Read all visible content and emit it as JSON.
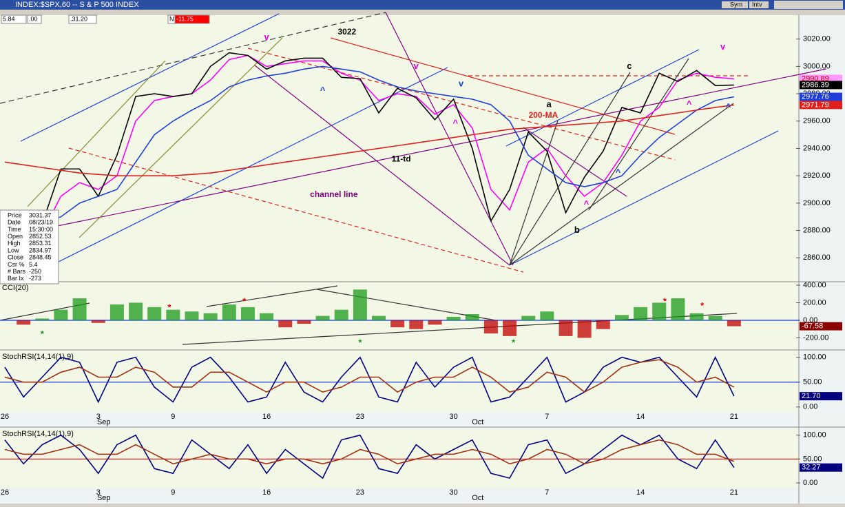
{
  "header": {
    "title": "INDEX:$SPX,60 -- S & P 500 INDEX",
    "fields": [
      "5.84",
      ".00",
      ".31.20",
      "N",
      "-11.75"
    ],
    "buttons": [
      "Sym",
      "Intv"
    ]
  },
  "info": {
    "rows": [
      {
        "label": "Price",
        "value": 3031.37
      },
      {
        "label": "Date",
        "value": "08/23/19"
      },
      {
        "label": "Time",
        "value": "15:30:00"
      },
      {
        "label": "Open",
        "value": 2852.53
      },
      {
        "label": "High",
        "value": 2853.31
      },
      {
        "label": "Low",
        "value": 2834.97
      },
      {
        "label": "Close",
        "value": 2848.45
      },
      {
        "label": "Csr %",
        "value": 5.4
      },
      {
        "label": "# Bars",
        "value": -250
      },
      {
        "label": "Bar Ix",
        "value": -273
      }
    ]
  },
  "chart_data": [
    {
      "type": "line",
      "ylim": [
        2843,
        3041
      ],
      "yticks": [
        {
          "value": 3020,
          "label": "3020.00"
        },
        {
          "value": 3000,
          "label": "3000.00"
        },
        {
          "value": 2980,
          "label": "2980.00"
        },
        {
          "value": 2960,
          "label": "2960.00"
        },
        {
          "value": 2940,
          "label": "2940.00"
        },
        {
          "value": 2920,
          "label": "2920.00"
        },
        {
          "value": 2900,
          "label": "2900.00"
        },
        {
          "value": 2880,
          "label": "2880.00"
        },
        {
          "value": 2860,
          "label": "2860.00"
        }
      ],
      "series": [
        {
          "color": "#ff00ff",
          "box_color": "#ff99ff",
          "box_text": "#cc0000",
          "values": [
            2880,
            2875,
            2878,
            2905,
            2915,
            2910,
            2920,
            2960,
            2975,
            2978,
            2980,
            2990,
            3005,
            3008,
            3000,
            3002,
            3004,
            3004,
            2995,
            2990,
            2975,
            2980,
            2978,
            2965,
            2972,
            2955,
            2910,
            2895,
            2930,
            2940,
            2920,
            2905,
            2915,
            2935,
            2960,
            2970,
            2990,
            2995,
            2992,
            2990.89
          ]
        },
        {
          "color": "#000000",
          "box_color": "#000000",
          "box_text": "#ffffff",
          "values": [
            2878,
            2870,
            2885,
            2925,
            2925,
            2905,
            2935,
            2978,
            2980,
            2978,
            2980,
            3000,
            3010,
            3008,
            2998,
            3004,
            3006,
            3006,
            2992,
            2991,
            2966,
            2984,
            2977,
            2961,
            2976,
            2940,
            2887,
            2910,
            2952,
            2938,
            2893,
            2919,
            2938,
            2970,
            2966,
            2995,
            2989,
            2997,
            2986,
            2986.39
          ]
        },
        {
          "color": "#1f3fd8",
          "box_color": "#1f3fd8",
          "box_text": "#ffffff",
          "values": [
            2890,
            2885,
            2885,
            2890,
            2900,
            2905,
            2910,
            2930,
            2950,
            2960,
            2968,
            2975,
            2985,
            2990,
            2993,
            2995,
            2998,
            3000,
            2998,
            2996,
            2990,
            2985,
            2982,
            2980,
            2978,
            2976,
            2972,
            2960,
            2935,
            2925,
            2915,
            2912,
            2915,
            2920,
            2935,
            2948,
            2958,
            2968,
            2975,
            2977.76
          ]
        },
        {
          "name": "200-MA",
          "color": "#e0201c",
          "box_color": "#e0201c",
          "box_text": "#ffffff",
          "values": [
            2930,
            2928,
            2926,
            2924,
            2922,
            2921,
            2920,
            2920,
            2920,
            2920,
            2921,
            2922,
            2924,
            2926,
            2928,
            2930,
            2932,
            2934,
            2936,
            2938,
            2940,
            2942,
            2944,
            2946,
            2948,
            2950,
            2952,
            2954,
            2955,
            2956,
            2957,
            2958,
            2959,
            2960,
            2962,
            2964,
            2966,
            2968,
            2970,
            2971.79
          ]
        }
      ],
      "annotations": [
        {
          "text": "3022",
          "x": 18.3,
          "y": 3025,
          "color": "#000000"
        },
        {
          "text": "channel line",
          "x": 17.6,
          "y": 2906,
          "color": "#800080"
        },
        {
          "text": "200-MA",
          "x": 28.8,
          "y": 2964,
          "color": "#e0201c"
        },
        {
          "text": "a",
          "x": 29.1,
          "y": 2972,
          "color": "#000000"
        },
        {
          "text": "b",
          "x": 30.6,
          "y": 2880,
          "color": "#000000"
        },
        {
          "text": "c",
          "x": 33.4,
          "y": 3000,
          "color": "#000000"
        },
        {
          "text": "11-td",
          "x": 21.2,
          "y": 2932,
          "color": "#000000"
        },
        {
          "text": "v",
          "x": 14,
          "y": 3021,
          "color": "#e000e0"
        },
        {
          "text": "v",
          "x": 22,
          "y": 3000,
          "color": "#e000e0"
        },
        {
          "text": "^",
          "x": 17,
          "y": 2982,
          "color": "#1f3fd8"
        },
        {
          "text": "v",
          "x": 24.4,
          "y": 2987,
          "color": "#1f3fd8"
        },
        {
          "text": "^",
          "x": 24.1,
          "y": 2958,
          "color": "#e000e0"
        },
        {
          "text": "^",
          "x": 31.1,
          "y": 2899,
          "color": "#e000e0"
        },
        {
          "text": "^",
          "x": 32.8,
          "y": 2922,
          "color": "#1f3fd8"
        },
        {
          "text": "^",
          "x": 36.6,
          "y": 2972,
          "color": "#e000e0"
        },
        {
          "text": "v",
          "x": 38.4,
          "y": 3014,
          "color": "#e000e0"
        },
        {
          "text": "^",
          "x": 38.7,
          "y": 2970,
          "color": "#1f3fd8"
        }
      ]
    },
    {
      "type": "bar",
      "title": "CCI(20)",
      "ylim": [
        -322,
        431
      ],
      "hline": 0,
      "hline_color": "#2040e0",
      "colors": {
        "positive": "#1a9a1a",
        "negative": "#c00000"
      },
      "box_color": "#8b0000",
      "box_text": "#ffffff",
      "yticks": [
        {
          "value": 400,
          "label": "400.00"
        },
        {
          "value": 200,
          "label": "200.00"
        },
        {
          "value": 0,
          "label": "0.00"
        },
        {
          "value": -200,
          "label": "-200.00"
        }
      ],
      "values": [
        0,
        -50,
        20,
        120,
        250,
        -30,
        180,
        200,
        150,
        120,
        100,
        80,
        180,
        150,
        80,
        -80,
        -40,
        50,
        120,
        350,
        50,
        -80,
        -100,
        -50,
        40,
        70,
        -150,
        -180,
        50,
        100,
        -180,
        -200,
        -100,
        60,
        150,
        200,
        250,
        80,
        50,
        -67.58
      ],
      "annotations": [
        {
          "text": "*",
          "x": 2,
          "y": -160,
          "color": "#1a9a1a"
        },
        {
          "text": "*",
          "x": 8.8,
          "y": 140,
          "color": "#e00000"
        },
        {
          "text": "*",
          "x": 12.8,
          "y": 210,
          "color": "#e00000"
        },
        {
          "text": "*",
          "x": 19,
          "y": -260,
          "color": "#1a9a1a"
        },
        {
          "text": "*",
          "x": 27.2,
          "y": -260,
          "color": "#1a9a1a"
        },
        {
          "text": "*",
          "x": 35.3,
          "y": 210,
          "color": "#e00000"
        },
        {
          "text": "*",
          "x": 37.3,
          "y": 160,
          "color": "#e00000"
        }
      ]
    },
    {
      "type": "line",
      "title": "StochRSI(14,14(1),9)",
      "ylim": [
        -10,
        112
      ],
      "hline": 50,
      "hline_color": "#2040e0",
      "yticks": [
        {
          "value": 100,
          "label": "100.00"
        },
        {
          "value": 50,
          "label": "50.00"
        },
        {
          "value": 0,
          "label": "0.00"
        }
      ],
      "categories": [
        "26",
        null,
        null,
        null,
        null,
        "3",
        null,
        null,
        null,
        "9",
        null,
        null,
        null,
        null,
        "16",
        null,
        null,
        null,
        null,
        "23",
        null,
        null,
        null,
        null,
        "30",
        null,
        null,
        null,
        null,
        "7",
        null,
        null,
        null,
        null,
        "14",
        null,
        null,
        null,
        null,
        "21"
      ],
      "month_labels": [
        null,
        null,
        null,
        null,
        null,
        "Sep",
        null,
        null,
        null,
        null,
        null,
        null,
        null,
        null,
        null,
        null,
        null,
        null,
        null,
        null,
        null,
        null,
        null,
        null,
        null,
        "Oct",
        null,
        null,
        null,
        null,
        null,
        null,
        null,
        null,
        null,
        null,
        null,
        null,
        null,
        null
      ],
      "series": [
        {
          "color": "#000080",
          "box_color": "#000080",
          "box_text": "#ffffff",
          "values": [
            80,
            20,
            60,
            100,
            90,
            10,
            90,
            100,
            40,
            10,
            80,
            100,
            60,
            10,
            20,
            90,
            30,
            10,
            60,
            100,
            20,
            10,
            90,
            40,
            80,
            100,
            10,
            20,
            60,
            100,
            10,
            30,
            80,
            100,
            90,
            100,
            60,
            20,
            100,
            21.7
          ],
          "value_labels": [
            null,
            null,
            null,
            null,
            null,
            null,
            null,
            null,
            null,
            null,
            null,
            null,
            null,
            null,
            null,
            null,
            null,
            null,
            null,
            null,
            null,
            null,
            null,
            null,
            null,
            null,
            null,
            null,
            null,
            null,
            null,
            null,
            null,
            null,
            null,
            null,
            null,
            null,
            null,
            "21.70"
          ]
        },
        {
          "color": "#a03010",
          "values": [
            60,
            50,
            50,
            70,
            80,
            60,
            60,
            80,
            70,
            40,
            40,
            70,
            70,
            50,
            30,
            50,
            50,
            30,
            40,
            60,
            60,
            30,
            50,
            60,
            60,
            80,
            60,
            30,
            40,
            70,
            60,
            30,
            50,
            80,
            90,
            95,
            80,
            50,
            60,
            40
          ]
        }
      ]
    },
    {
      "type": "line",
      "title": "StochRSI(14,14(1),9)",
      "ylim": [
        -10,
        114
      ],
      "hline": 50,
      "hline_color": "#e0201c",
      "yticks": [
        {
          "value": 100,
          "label": "100.00"
        },
        {
          "value": 50,
          "label": "50.00"
        },
        {
          "value": 0,
          "label": "0.00"
        }
      ],
      "categories": [
        "26",
        null,
        null,
        null,
        null,
        "3",
        null,
        null,
        null,
        "9",
        null,
        null,
        null,
        null,
        "16",
        null,
        null,
        null,
        null,
        "23",
        null,
        null,
        null,
        null,
        "30",
        null,
        null,
        null,
        null,
        "7",
        null,
        null,
        null,
        null,
        "14",
        null,
        null,
        null,
        null,
        "21"
      ],
      "month_labels": [
        null,
        null,
        null,
        null,
        null,
        "Sep",
        null,
        null,
        null,
        null,
        null,
        null,
        null,
        null,
        null,
        null,
        null,
        null,
        null,
        null,
        null,
        null,
        null,
        null,
        null,
        "Oct",
        null,
        null,
        null,
        null,
        null,
        null,
        null,
        null,
        null,
        null,
        null,
        null,
        null,
        null
      ],
      "series": [
        {
          "color": "#000080",
          "box_color": "#000080",
          "box_text": "#ffffff",
          "values": [
            90,
            40,
            80,
            100,
            70,
            20,
            80,
            100,
            30,
            20,
            90,
            60,
            30,
            80,
            20,
            70,
            40,
            10,
            90,
            100,
            30,
            20,
            80,
            50,
            70,
            90,
            20,
            10,
            80,
            90,
            20,
            40,
            70,
            100,
            80,
            100,
            50,
            30,
            90,
            32.27
          ]
        },
        {
          "color": "#a03010",
          "values": [
            70,
            60,
            60,
            70,
            80,
            60,
            60,
            80,
            60,
            40,
            50,
            60,
            50,
            50,
            40,
            50,
            50,
            40,
            50,
            70,
            60,
            40,
            50,
            60,
            60,
            70,
            60,
            40,
            50,
            70,
            60,
            40,
            50,
            70,
            80,
            90,
            80,
            60,
            60,
            45
          ]
        }
      ]
    }
  ]
}
